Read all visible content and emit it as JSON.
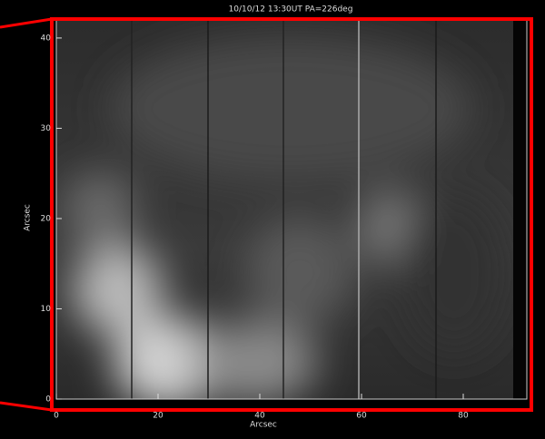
{
  "chart_data": {
    "type": "image",
    "title": "10/10/12 13:30UT PA=226deg",
    "xlabel": "Arcsec",
    "ylabel": "Arcsec",
    "xlim": [
      0,
      92.5
    ],
    "ylim": [
      0,
      42
    ],
    "xticks": [
      0,
      20,
      40,
      60,
      80
    ],
    "yticks": [
      0,
      10,
      20,
      30,
      40
    ]
  }
}
